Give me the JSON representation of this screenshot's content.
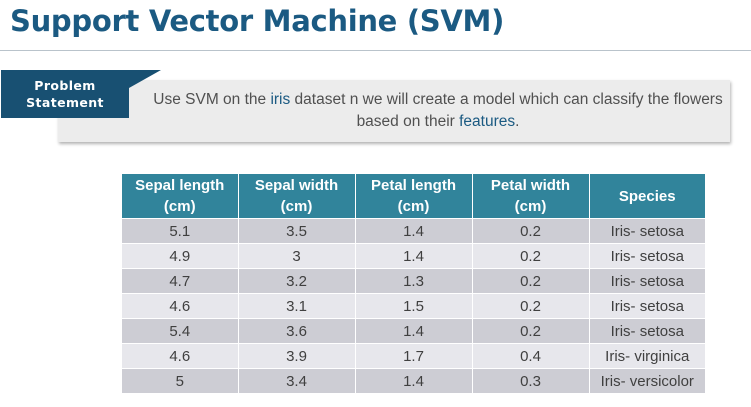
{
  "slide": {
    "title": "Support Vector Machine (SVM)"
  },
  "problem": {
    "tag_line1": "Problem",
    "tag_line2": "Statement",
    "text_part1": "Use SVM on the ",
    "keyword1": "iris",
    "text_part2": " dataset n we will create a model which can classify the flowers based on their ",
    "keyword2": "features",
    "text_part3": "."
  },
  "colors": {
    "title": "#1b5a82",
    "tag_background": "#185072",
    "table_header": "#31849b",
    "row_dark": "#cdcdd4",
    "row_light": "#e7e7ec"
  },
  "table": {
    "headers": [
      {
        "line1": "Sepal length",
        "line2": "(cm)"
      },
      {
        "line1": "Sepal width",
        "line2": "(cm)"
      },
      {
        "line1": "Petal length",
        "line2": "(cm)"
      },
      {
        "line1": "Petal width",
        "line2": "(cm)"
      },
      {
        "line1": "Species",
        "line2": ""
      }
    ],
    "rows": [
      [
        "5.1",
        "3.5",
        "1.4",
        "0.2",
        "Iris- setosa"
      ],
      [
        "4.9",
        "3",
        "1.4",
        "0.2",
        "Iris- setosa"
      ],
      [
        "4.7",
        "3.2",
        "1.3",
        "0.2",
        "Iris- setosa"
      ],
      [
        "4.6",
        "3.1",
        "1.5",
        "0.2",
        "Iris- setosa"
      ],
      [
        "5.4",
        "3.6",
        "1.4",
        "0.2",
        "Iris- setosa"
      ],
      [
        "4.6",
        "3.9",
        "1.7",
        "0.4",
        "Iris- virginica"
      ],
      [
        "5",
        "3.4",
        "1.4",
        "0.3",
        "Iris- versicolor"
      ]
    ]
  }
}
